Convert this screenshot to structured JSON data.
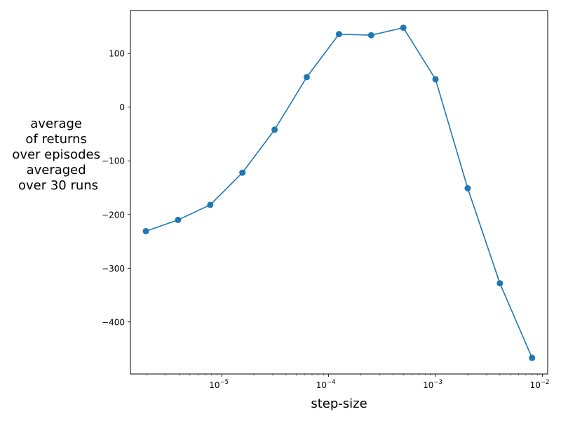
{
  "chart_data": {
    "type": "line",
    "xlabel": "step-size",
    "ylabel_lines": [
      "average",
      "of returns",
      "over episodes",
      "averaged",
      "over 30 runs"
    ],
    "x_scale": "log",
    "xlim": [
      1.4e-06,
      0.0112
    ],
    "ylim": [
      -497,
      180
    ],
    "x_ticks": [
      {
        "value": 1e-05,
        "base": "10",
        "exp": "−5"
      },
      {
        "value": 0.0001,
        "base": "10",
        "exp": "−4"
      },
      {
        "value": 0.001,
        "base": "10",
        "exp": "−3"
      },
      {
        "value": 0.01,
        "base": "10",
        "exp": "−2"
      }
    ],
    "y_ticks": [
      {
        "value": 100,
        "label": "100"
      },
      {
        "value": 0,
        "label": "0"
      },
      {
        "value": -100,
        "label": "−100"
      },
      {
        "value": -200,
        "label": "−200"
      },
      {
        "value": -300,
        "label": "−300"
      },
      {
        "value": -400,
        "label": "−400"
      }
    ],
    "series": [
      {
        "color": "#1f77b4",
        "points": [
          {
            "x": 1.953125e-06,
            "y": -231
          },
          {
            "x": 3.90625e-06,
            "y": -210
          },
          {
            "x": 7.8125e-06,
            "y": -182
          },
          {
            "x": 1.5625e-05,
            "y": -122
          },
          {
            "x": 3.125e-05,
            "y": -42
          },
          {
            "x": 6.25e-05,
            "y": 56
          },
          {
            "x": 0.000125,
            "y": 136
          },
          {
            "x": 0.00025,
            "y": 134
          },
          {
            "x": 0.0005,
            "y": 148
          },
          {
            "x": 0.001,
            "y": 52
          },
          {
            "x": 0.002,
            "y": -151
          },
          {
            "x": 0.004,
            "y": -328
          },
          {
            "x": 0.008,
            "y": -467
          }
        ]
      }
    ]
  }
}
